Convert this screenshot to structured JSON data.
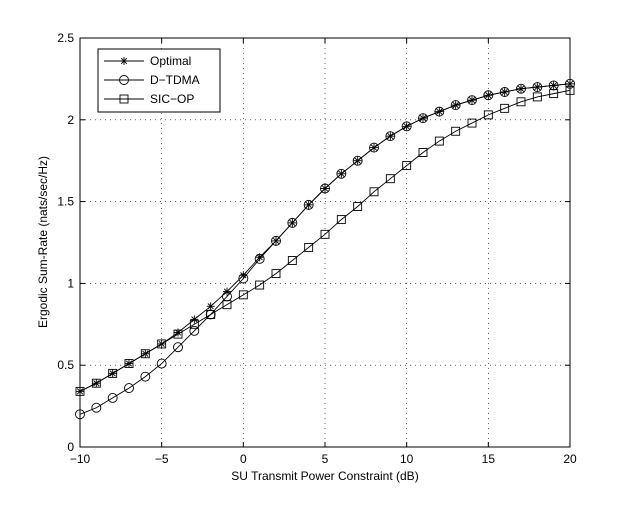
{
  "chart_data": {
    "type": "line",
    "title": "",
    "xlabel": "SU Transmit Power Constraint (dB)",
    "ylabel": "Ergodic Sum-Rate (nats/sec/Hz)",
    "xlim": [
      -10,
      20
    ],
    "ylim": [
      0,
      2.5
    ],
    "xticks": [
      -10,
      -5,
      0,
      5,
      10,
      15,
      20
    ],
    "xtick_labels": [
      "−10",
      "−5",
      "0",
      "5",
      "10",
      "15",
      "20"
    ],
    "yticks": [
      0,
      0.5,
      1,
      1.5,
      2,
      2.5
    ],
    "ytick_labels": [
      "0",
      "0.5",
      "1",
      "1.5",
      "2",
      "2.5"
    ],
    "grid": true,
    "legend_position": "top-left",
    "x": [
      -10,
      -9,
      -8,
      -7,
      -6,
      -5,
      -4,
      -3,
      -2,
      -1,
      0,
      1,
      2,
      3,
      4,
      5,
      6,
      7,
      8,
      9,
      10,
      11,
      12,
      13,
      14,
      15,
      16,
      17,
      18,
      19,
      20
    ],
    "series": [
      {
        "name": "Optimal",
        "marker": "star",
        "values": [
          0.34,
          0.39,
          0.45,
          0.51,
          0.57,
          0.63,
          0.7,
          0.78,
          0.86,
          0.95,
          1.05,
          1.16,
          1.26,
          1.37,
          1.48,
          1.58,
          1.67,
          1.75,
          1.83,
          1.9,
          1.96,
          2.01,
          2.05,
          2.09,
          2.12,
          2.15,
          2.17,
          2.19,
          2.2,
          2.21,
          2.22
        ]
      },
      {
        "name": "D−TDMA",
        "marker": "circle",
        "values": [
          0.2,
          0.24,
          0.3,
          0.36,
          0.43,
          0.51,
          0.61,
          0.71,
          0.81,
          0.92,
          1.03,
          1.15,
          1.26,
          1.37,
          1.48,
          1.58,
          1.67,
          1.75,
          1.83,
          1.9,
          1.96,
          2.01,
          2.05,
          2.09,
          2.12,
          2.15,
          2.17,
          2.19,
          2.2,
          2.21,
          2.22
        ]
      },
      {
        "name": "SIC−OP",
        "marker": "square",
        "values": [
          0.34,
          0.39,
          0.45,
          0.51,
          0.57,
          0.63,
          0.69,
          0.75,
          0.81,
          0.87,
          0.93,
          0.99,
          1.06,
          1.14,
          1.22,
          1.3,
          1.39,
          1.47,
          1.56,
          1.64,
          1.72,
          1.8,
          1.87,
          1.93,
          1.98,
          2.03,
          2.07,
          2.11,
          2.14,
          2.16,
          2.18
        ]
      }
    ]
  }
}
